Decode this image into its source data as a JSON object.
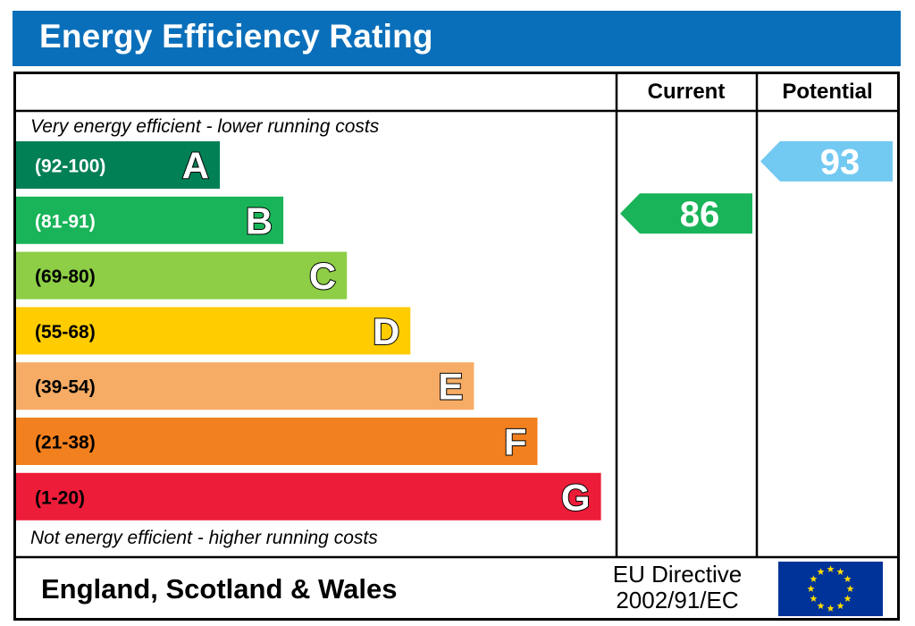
{
  "title": "Energy Efficiency Rating",
  "chart_data": {
    "type": "bar",
    "title": "Energy Efficiency Rating",
    "columns": {
      "current": "Current",
      "potential": "Potential"
    },
    "notes": {
      "top": "Very energy efficient - lower running costs",
      "bottom": "Not energy efficient - higher running costs"
    },
    "bands": [
      {
        "letter": "A",
        "range": "(92-100)",
        "min": 92,
        "max": 100,
        "color": "#008054",
        "text_color": "#ffffff"
      },
      {
        "letter": "B",
        "range": "(81-91)",
        "min": 81,
        "max": 91,
        "color": "#19b459",
        "text_color": "#ffffff"
      },
      {
        "letter": "C",
        "range": "(69-80)",
        "min": 69,
        "max": 80,
        "color": "#8dce46",
        "text_color": "#000000"
      },
      {
        "letter": "D",
        "range": "(55-68)",
        "min": 55,
        "max": 68,
        "color": "#ffcc00",
        "text_color": "#000000"
      },
      {
        "letter": "E",
        "range": "(39-54)",
        "min": 39,
        "max": 54,
        "color": "#f6ac64",
        "text_color": "#000000"
      },
      {
        "letter": "F",
        "range": "(21-38)",
        "min": 21,
        "max": 38,
        "color": "#f2801f",
        "text_color": "#000000"
      },
      {
        "letter": "G",
        "range": "(1-20)",
        "min": 1,
        "max": 20,
        "color": "#ed1c39",
        "text_color": "#000000"
      }
    ],
    "current": {
      "value": 86,
      "band": "B",
      "color": "#19b459"
    },
    "potential": {
      "value": 93,
      "band": "A",
      "color": "#72c9f2"
    }
  },
  "footer": {
    "region": "England, Scotland & Wales",
    "directive_line1": "EU Directive",
    "directive_line2": "2002/91/EC"
  },
  "colors": {
    "title_bar": "#0a6fba",
    "eu_flag": "#003399",
    "eu_star": "#ffdd00"
  },
  "icons": {
    "eu_flag": "eu-flag-icon"
  }
}
